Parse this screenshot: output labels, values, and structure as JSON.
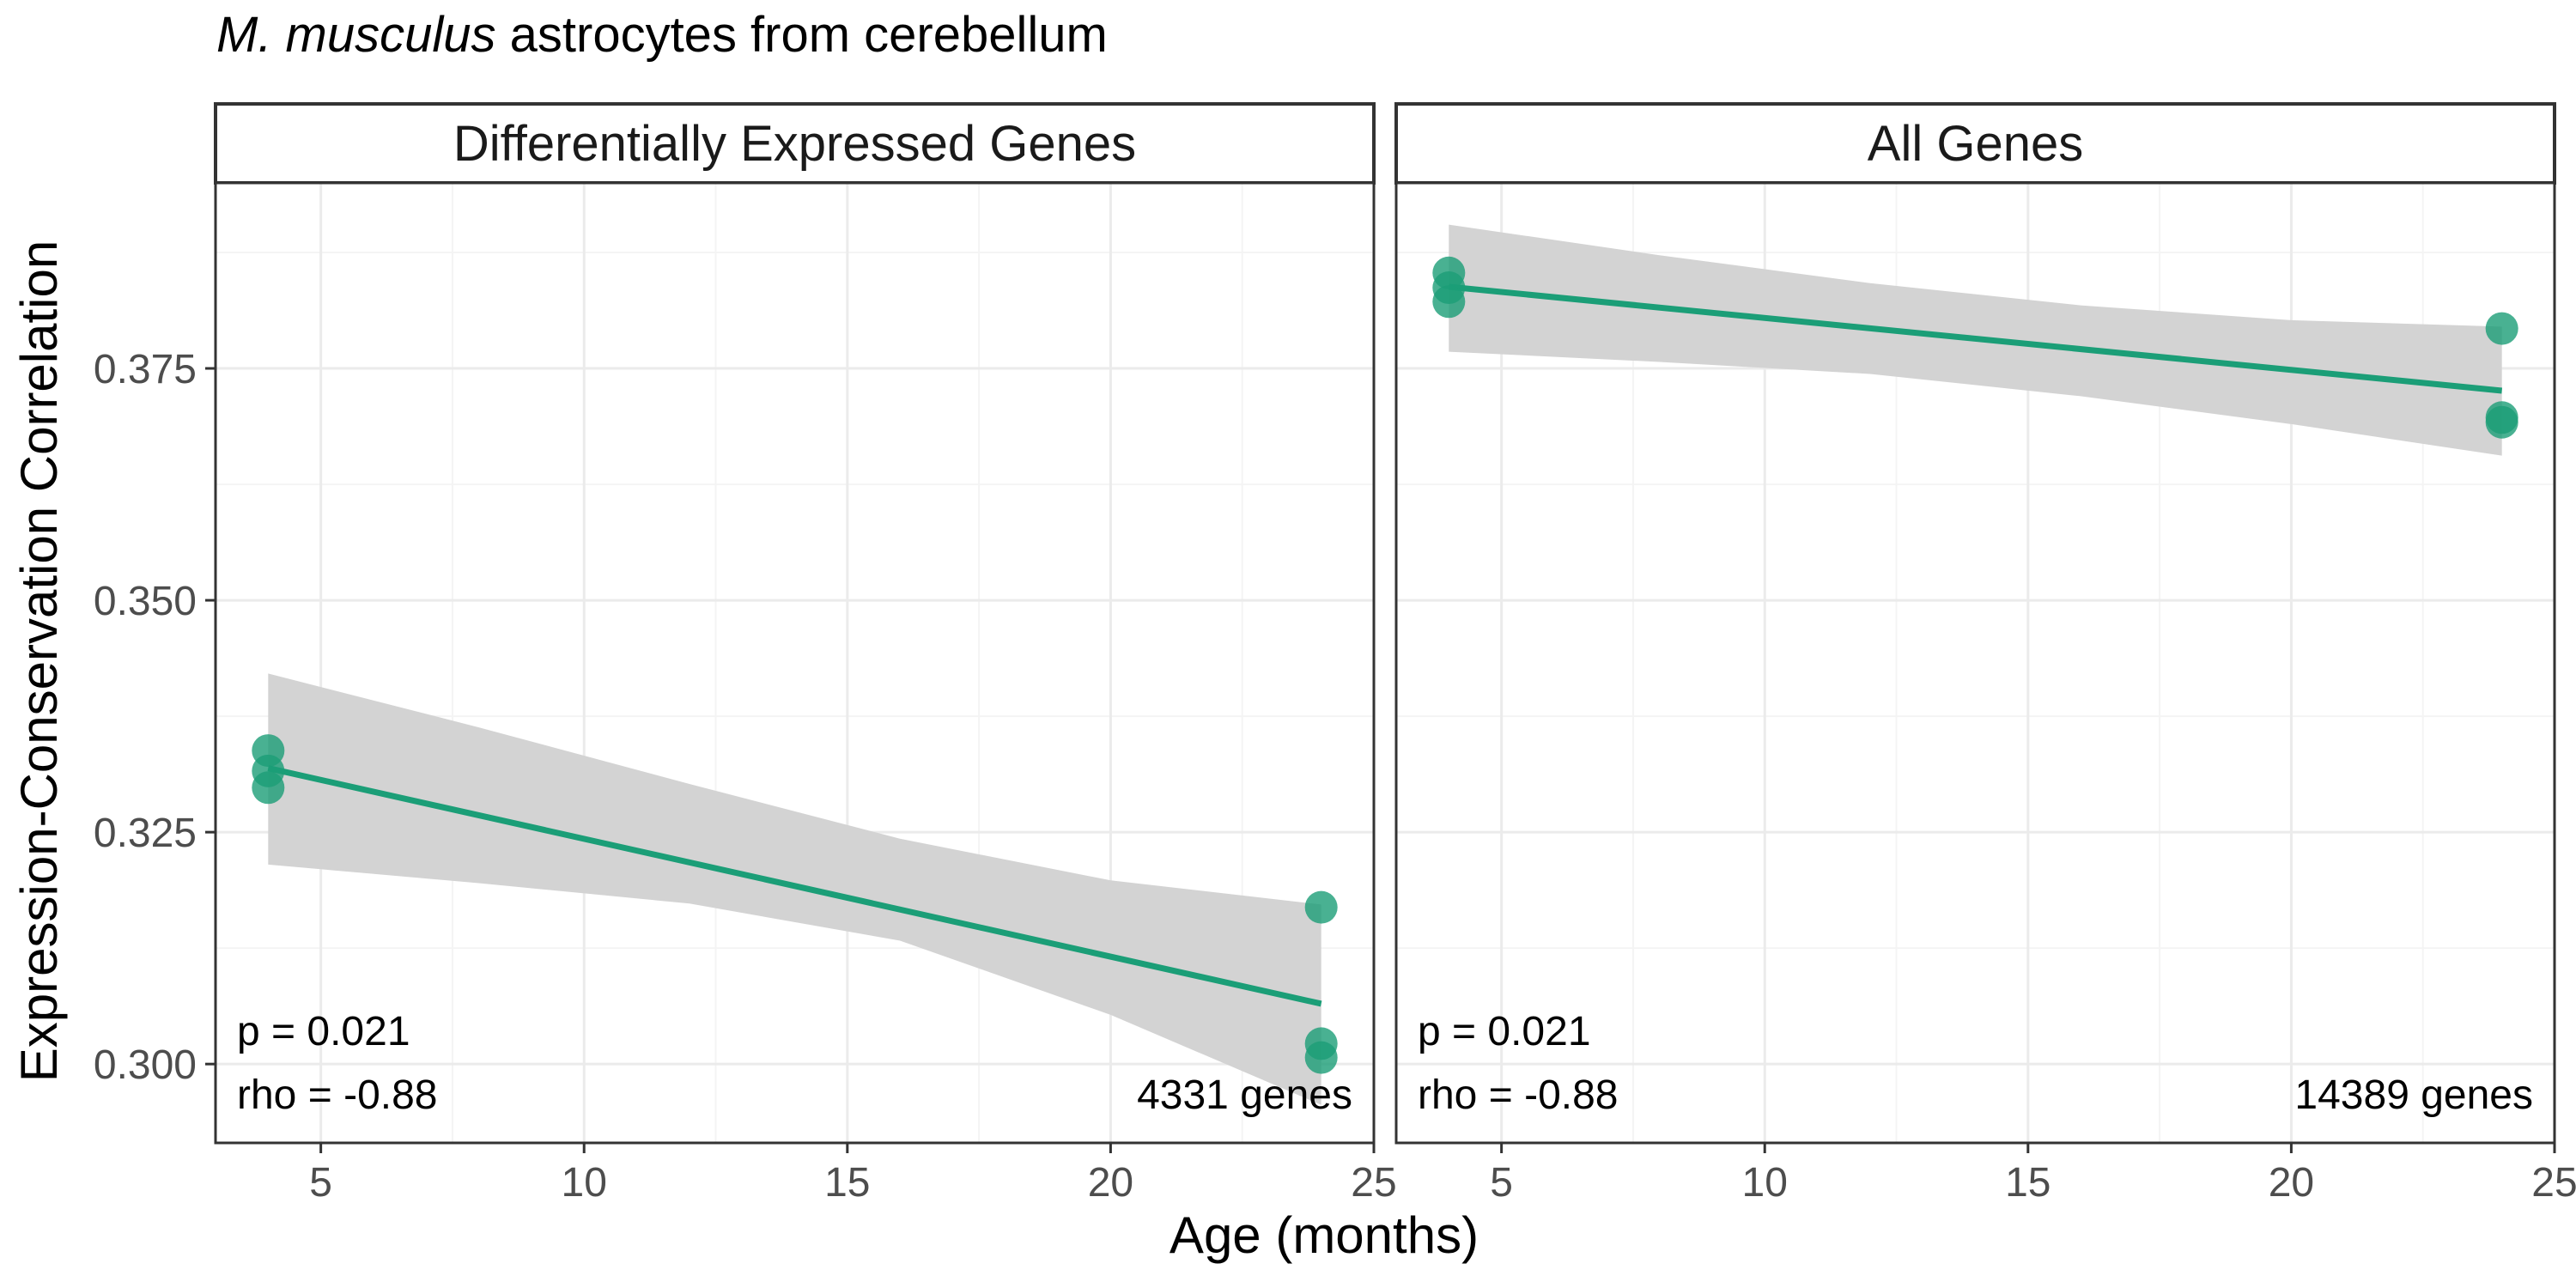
{
  "title": {
    "species": "M. musculus",
    "rest": " astrocytes from cerebellum"
  },
  "colors": {
    "point": "#1b9e77",
    "line": "#1b9e77",
    "ribbon": "#d3d3d3",
    "grid_major": "#ebebeb",
    "grid_minor": "#f4f4f4",
    "panel_border": "#333333"
  },
  "chart_data": {
    "type": "scatter",
    "xlabel": "Age (months)",
    "ylabel": "Expression-Conservation Correlation",
    "xlim": [
      3,
      25
    ],
    "ylim": [
      0.2915,
      0.395
    ],
    "x_ticks": [
      5,
      10,
      15,
      20,
      25
    ],
    "x_tick_labels": [
      "5",
      "10",
      "15",
      "20",
      "25"
    ],
    "y_ticks": [
      0.3,
      0.325,
      0.35,
      0.375
    ],
    "y_tick_labels": [
      "0.300",
      "0.325",
      "0.350",
      "0.375"
    ],
    "grid": true,
    "panels": [
      {
        "strip": "Differentially Expressed Genes",
        "points": [
          {
            "x": 4,
            "y": 0.3338
          },
          {
            "x": 4,
            "y": 0.3316
          },
          {
            "x": 4,
            "y": 0.3298
          },
          {
            "x": 24,
            "y": 0.3169
          },
          {
            "x": 24,
            "y": 0.3022
          },
          {
            "x": 24,
            "y": 0.3007
          }
        ],
        "fit": {
          "x": [
            4,
            24
          ],
          "y": [
            0.3319,
            0.3065
          ]
        },
        "ribbon": {
          "x": [
            4,
            8,
            12,
            16,
            20,
            24
          ],
          "upper": [
            0.3421,
            0.3363,
            0.3302,
            0.3243,
            0.3198,
            0.3172
          ],
          "lower": [
            0.3215,
            0.3195,
            0.3173,
            0.3133,
            0.3053,
            0.2956
          ]
        },
        "p_text": "p = 0.021",
        "rho_text": "rho = -0.88",
        "n_text": "4331 genes"
      },
      {
        "strip": "All Genes",
        "points": [
          {
            "x": 4,
            "y": 0.3853
          },
          {
            "x": 4,
            "y": 0.3837
          },
          {
            "x": 4,
            "y": 0.3822
          },
          {
            "x": 24,
            "y": 0.3793
          },
          {
            "x": 24,
            "y": 0.3697
          },
          {
            "x": 24,
            "y": 0.3692
          }
        ],
        "fit": {
          "x": [
            4,
            24
          ],
          "y": [
            0.3838,
            0.3726
          ]
        },
        "ribbon": {
          "x": [
            4,
            8,
            12,
            16,
            20,
            24
          ],
          "upper": [
            0.3905,
            0.3872,
            0.3842,
            0.3818,
            0.3802,
            0.3795
          ],
          "lower": [
            0.3768,
            0.3757,
            0.3744,
            0.372,
            0.369,
            0.3656
          ]
        },
        "p_text": "p = 0.021",
        "rho_text": "rho = -0.88",
        "n_text": "14389 genes"
      }
    ]
  }
}
